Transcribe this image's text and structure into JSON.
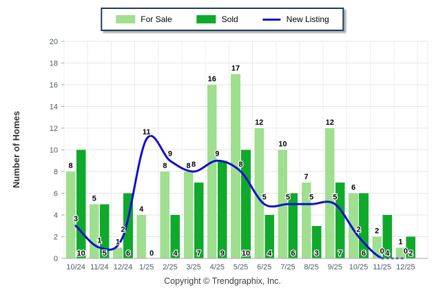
{
  "legend": {
    "for_sale_label": "For Sale",
    "sold_label": "Sold",
    "new_listing_label": "New Listing"
  },
  "footer": {
    "copyright": "Copyright © Trendgraphix, Inc."
  },
  "colors": {
    "for_sale": "#9fdf8f",
    "sold": "#0fa92b",
    "new_listing": "#0f0fce",
    "grid": "#e4e4e4",
    "grid_vertical": "#ededed",
    "axis": "#a6a6a6",
    "legend_border": "#1c3a5e"
  },
  "chart_data": {
    "type": "bar+line",
    "title": "",
    "xlabel": "",
    "ylabel": "Number of Homes",
    "ylim": [
      0,
      20
    ],
    "ytick_step": 2,
    "grid": true,
    "legend_position": "top-center",
    "categories": [
      "10/24",
      "11/24",
      "12/24",
      "1/25",
      "2/25",
      "3/25",
      "4/25",
      "5/25",
      "6/25",
      "7/25",
      "8/25",
      "9/25",
      "10/25",
      "11/25",
      "12/25"
    ],
    "series": [
      {
        "name": "For Sale",
        "type": "bar",
        "color": "#9fdf8f",
        "values": [
          8,
          5,
          1,
          4,
          8,
          8,
          16,
          17,
          12,
          10,
          7,
          12,
          6,
          2,
          1
        ],
        "label_position": "above-bar"
      },
      {
        "name": "Sold",
        "type": "bar",
        "color": "#0fa92b",
        "values": [
          10,
          5,
          6,
          0,
          4,
          7,
          9,
          10,
          4,
          6,
          3,
          7,
          6,
          4,
          2
        ],
        "label_position": "bottom-of-bar"
      },
      {
        "name": "New Listing",
        "type": "line",
        "color": "#0f0fce",
        "values": [
          3,
          1,
          2,
          11,
          9,
          8,
          9,
          8,
          5,
          5,
          5,
          5,
          2,
          0,
          0
        ],
        "smooth": true,
        "last_segment_dashed": true,
        "label_position": "above-point"
      }
    ]
  }
}
